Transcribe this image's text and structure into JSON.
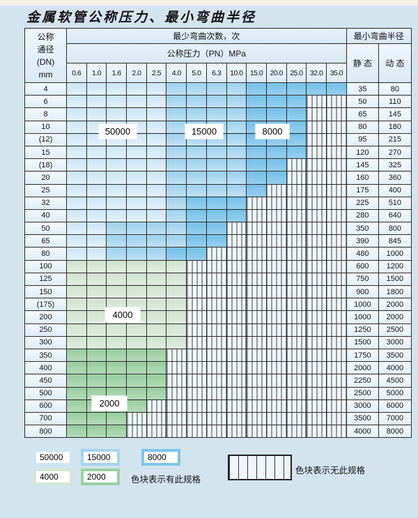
{
  "title": "金属软管公称压力、最小弯曲半径",
  "header": {
    "dn_lines": [
      "公称",
      "通径",
      "(DN)",
      "mm"
    ],
    "bend_cycles": "最少弯曲次数，次",
    "pressure": "公称压力（PN）MPa",
    "min_radius": "最小弯曲半径",
    "static": "静 态",
    "dynamic": "动 态"
  },
  "columns": {
    "pressures": [
      "0.6",
      "1.0",
      "1.6",
      "2.0",
      "2.5",
      "4.0",
      "5.0",
      "6.3",
      "10.0",
      "15.0",
      "20.0",
      "25.0",
      "32.0",
      "35.0"
    ]
  },
  "cell_classes": {
    "b1": "50000次-浅蓝",
    "b2": "15000次-中蓝",
    "b3": "8000次-深蓝",
    "g1": "4000次-浅绿",
    "g2": "2000次-中绿",
    "x": "无此规格-斜线"
  },
  "colors": {
    "blue_50000": "#cde6f6",
    "blue_15000": "#a2d4f0",
    "blue_8000": "#7cc5ea",
    "green_4000": "#d2e7d1",
    "green_2000": "#9bd0a3",
    "page_bg": "#d3e4ef"
  },
  "rows": [
    {
      "dn": "4",
      "static": "35",
      "dynamic": "80",
      "cells": "b1 b1 b1 b1 b1 b2 b2 b2 b2 b3 b3 b3 b3 b3"
    },
    {
      "dn": "6",
      "static": "50",
      "dynamic": "110",
      "cells": "b1 b1 b1 b1 b1 b2 b2 b2 b2 b3 b3 b3 x x"
    },
    {
      "dn": "8",
      "static": "65",
      "dynamic": "145",
      "cells": "b1 b1 b1 b1 b1 b2 b2 b2 b2 b3 b3 b3 x x"
    },
    {
      "dn": "10",
      "static": "80",
      "dynamic": "180",
      "cells": "b1 b1 b1 b1 b1 b2 b2 b2 b2 b3 b3 b3 x x"
    },
    {
      "dn": "(12)",
      "static": "95",
      "dynamic": "215",
      "cells": "b1 b1 b1 b1 b1 b2 b2 b2 b2 b3 b3 b3 x x"
    },
    {
      "dn": "15",
      "static": "120",
      "dynamic": "270",
      "cells": "b1 b1 b1 b1 b1 b2 b2 b2 b2 b3 b3 b3 x x"
    },
    {
      "dn": "(18)",
      "static": "145",
      "dynamic": "325",
      "cells": "b1 b1 b1 b1 b1 b2 b2 b2 b2 b3 b3 x x x"
    },
    {
      "dn": "20",
      "static": "160",
      "dynamic": "360",
      "cells": "b1 b1 b1 b1 b1 b2 b2 b2 b2 b3 b3 x x x"
    },
    {
      "dn": "25",
      "static": "175",
      "dynamic": "400",
      "cells": "b1 b1 b1 b1 b1 b2 b2 b2 b2 b3 x x x x"
    },
    {
      "dn": "32",
      "static": "225",
      "dynamic": "510",
      "cells": "b1 b1 b1 b1 b1 b2 b3 b3 b3 x x x x x"
    },
    {
      "dn": "40",
      "static": "280",
      "dynamic": "640",
      "cells": "b1 b1 b1 b1 b1 b2 b3 b3 b3 x x x x x"
    },
    {
      "dn": "50",
      "static": "350",
      "dynamic": "800",
      "cells": "b1 b1 b2 b2 b2 b2 b3 b3 x x x x x x"
    },
    {
      "dn": "65",
      "static": "390",
      "dynamic": "845",
      "cells": "b1 b1 b2 b2 b2 b2 b3 b3 x x x x x x"
    },
    {
      "dn": "80",
      "static": "480",
      "dynamic": "1000",
      "cells": "b1 b1 b2 b2 b2 b3 b3 x x x x x x x"
    },
    {
      "dn": "100",
      "static": "600",
      "dynamic": "1200",
      "cells": "g1 g1 g1 g1 g1 g1 x x x x x x x x"
    },
    {
      "dn": "125",
      "static": "750",
      "dynamic": "1500",
      "cells": "g1 g1 g1 g1 g1 g1 x x x x x x x x"
    },
    {
      "dn": "150",
      "static": "900",
      "dynamic": "1800",
      "cells": "g1 g1 g1 g1 g1 g1 x x x x x x x x"
    },
    {
      "dn": "(175)",
      "static": "1000",
      "dynamic": "2000",
      "cells": "g1 g1 g1 g1 g1 g1 x x x x x x x x"
    },
    {
      "dn": "200",
      "static": "1000",
      "dynamic": "2000",
      "cells": "g1 g1 g1 g1 g1 g1 x x x x x x x x"
    },
    {
      "dn": "250",
      "static": "1250",
      "dynamic": "2500",
      "cells": "g1 g1 g1 g1 g1 g1 x x x x x x x x"
    },
    {
      "dn": "300",
      "static": "1500",
      "dynamic": "3000",
      "cells": "g1 g1 g1 g1 g1 g1 x x x x x x x x"
    },
    {
      "dn": "350",
      "static": "1750",
      "dynamic": "3500",
      "cells": "g2 g2 g2 g2 g2 x x x x x x x x x"
    },
    {
      "dn": "400",
      "static": "2000",
      "dynamic": "4000",
      "cells": "g2 g2 g2 g2 g2 x x x x x x x x x"
    },
    {
      "dn": "450",
      "static": "2250",
      "dynamic": "4500",
      "cells": "g2 g2 g2 g2 g2 x x x x x x x x x"
    },
    {
      "dn": "500",
      "static": "2500",
      "dynamic": "5000",
      "cells": "g2 g2 g2 g2 g2 x x x x x x x x x"
    },
    {
      "dn": "600",
      "static": "3000",
      "dynamic": "6000",
      "cells": "g2 g2 g2 g2 x x x x x x x x x x"
    },
    {
      "dn": "700",
      "static": "3500",
      "dynamic": "7000",
      "cells": "g2 g2 g2 x x x x x x x x x x x"
    },
    {
      "dn": "800",
      "static": "4000",
      "dynamic": "8000",
      "cells": "g2 g2 g2 x x x x x x x x x x x"
    }
  ],
  "float_labels": {
    "l50000": "50000",
    "l15000": "15000",
    "l8000": "8000",
    "l4000": "4000",
    "l2000": "2000"
  },
  "legend": {
    "items": [
      {
        "label": "50000",
        "class": "sw-b1"
      },
      {
        "label": "15000",
        "class": "sw-b2"
      },
      {
        "label": "8000",
        "class": "sw-b3"
      },
      {
        "label": "4000",
        "class": "sw-g1"
      },
      {
        "label": "2000",
        "class": "sw-g2"
      }
    ],
    "has_spec_text": "色块表示有此规格",
    "no_spec_text": "色块表示无此规格"
  }
}
